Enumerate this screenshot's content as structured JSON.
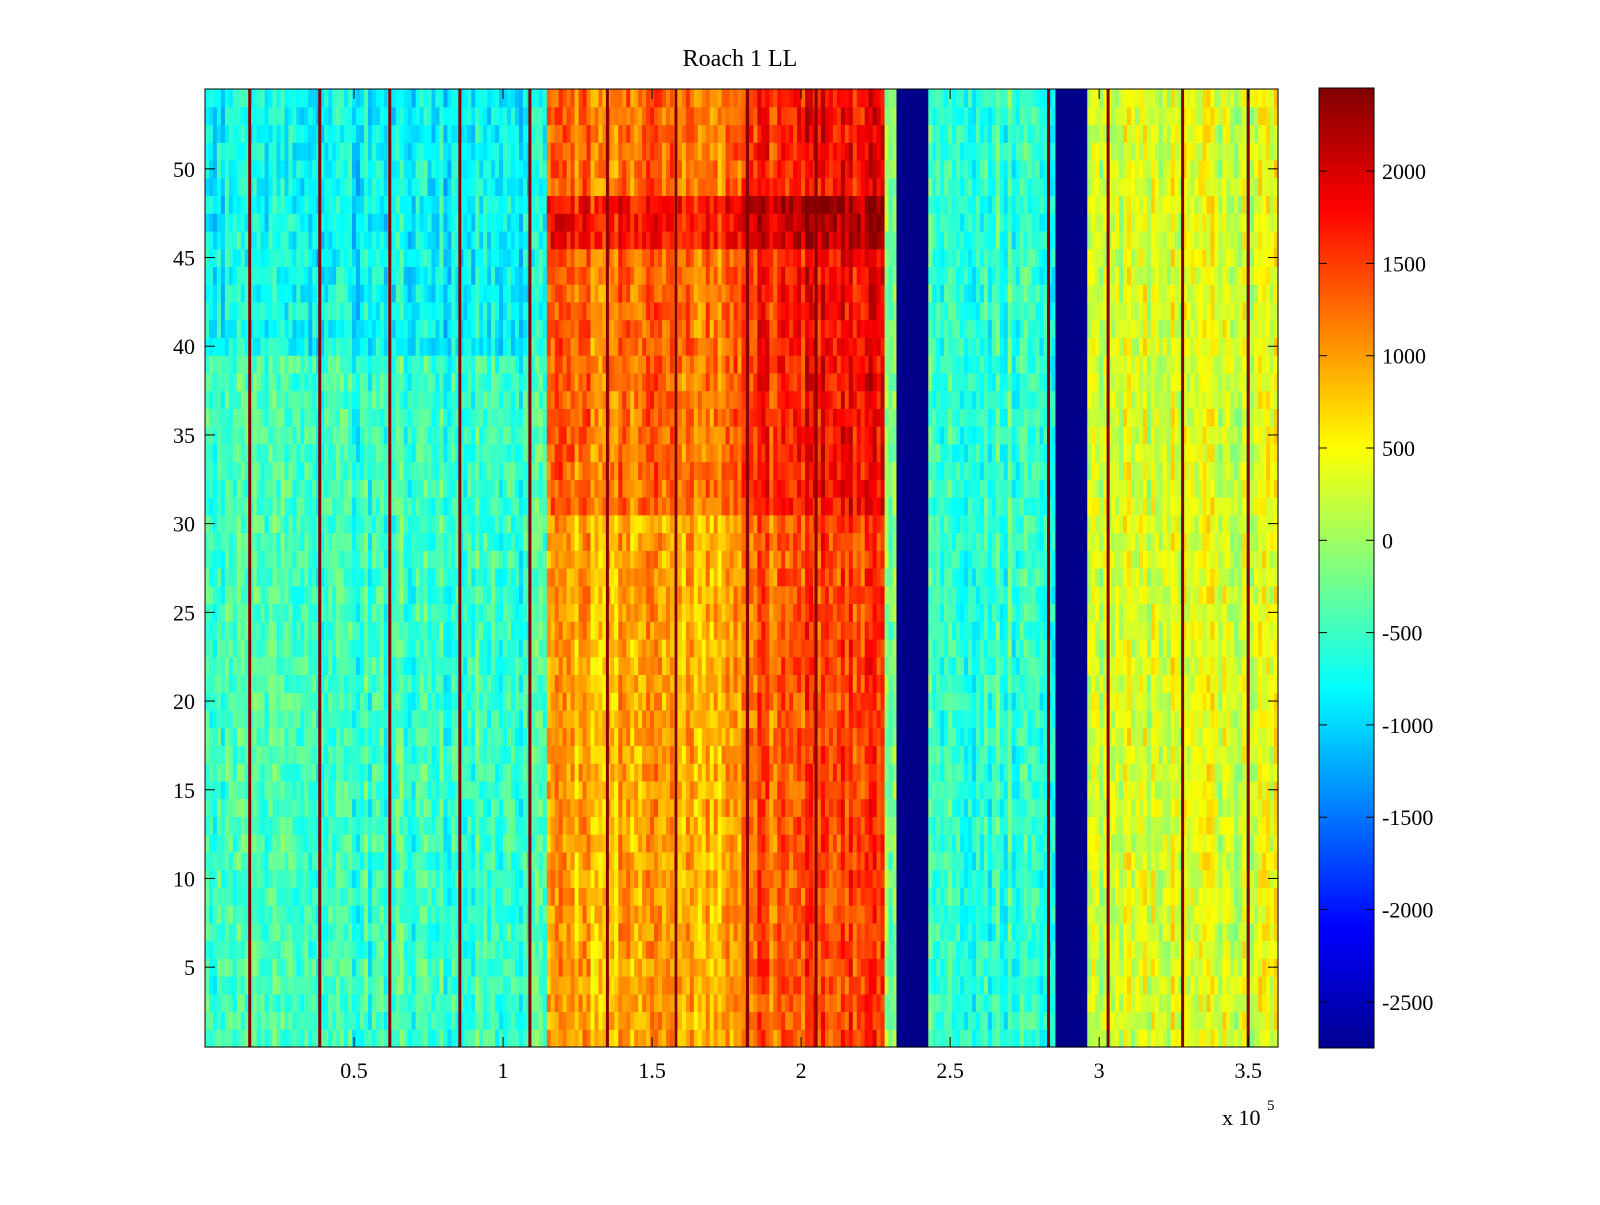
{
  "chart_data": {
    "type": "heatmap",
    "title": "Roach 1 LL",
    "xlabel": "",
    "ylabel": "",
    "colormap": "jet",
    "xlim": [
      0,
      360000
    ],
    "ylim": [
      0.5,
      54.5
    ],
    "x_tick_values": [
      50000,
      100000,
      150000,
      200000,
      250000,
      300000,
      350000
    ],
    "x_tick_labels": [
      "0.5",
      "1",
      "1.5",
      "2",
      "2.5",
      "3",
      "3.5"
    ],
    "x_multiplier_label": {
      "base": "x 10",
      "exponent": "5"
    },
    "y_tick_values": [
      5,
      10,
      15,
      20,
      25,
      30,
      35,
      40,
      45,
      50
    ],
    "y_tick_labels": [
      "5",
      "10",
      "15",
      "20",
      "25",
      "30",
      "35",
      "40",
      "45",
      "50"
    ],
    "clim": [
      -2750,
      2450
    ],
    "colorbar_tick_values": [
      2000,
      1500,
      1000,
      500,
      0,
      -500,
      -1000,
      -1500,
      -2000,
      -2500
    ],
    "colorbar_tick_labels": [
      "2000",
      "1500",
      "1000",
      "500",
      "0",
      "-500",
      "-1000",
      "-1500",
      "-2000",
      "-2500"
    ],
    "rows": 54,
    "column_regions": [
      {
        "x_start": 0,
        "x_end": 115000,
        "base_value": -500
      },
      {
        "x_start": 115000,
        "x_end": 180000,
        "base_value": 900
      },
      {
        "x_start": 180000,
        "x_end": 202000,
        "base_value": 1300
      },
      {
        "x_start": 202000,
        "x_end": 228000,
        "base_value": 1500
      },
      {
        "x_start": 228000,
        "x_end": 232000,
        "base_value": -200
      },
      {
        "x_start": 232000,
        "x_end": 243000,
        "base_value": -2700
      },
      {
        "x_start": 243000,
        "x_end": 285000,
        "base_value": -500
      },
      {
        "x_start": 285000,
        "x_end": 296000,
        "base_value": -2700
      },
      {
        "x_start": 296000,
        "x_end": 360000,
        "base_value": 300
      }
    ],
    "row_modifiers": [
      {
        "y_start": 31,
        "y_end": 54,
        "delta": 300,
        "x_range": [
          115000,
          228000
        ]
      },
      {
        "y_start": 46,
        "y_end": 48,
        "delta": 500,
        "x_range": [
          115000,
          228000
        ]
      },
      {
        "y_start": 40,
        "y_end": 54,
        "delta": -300,
        "x_range": [
          0,
          115000
        ]
      }
    ],
    "spike_lines_x": [
      15000,
      38500,
      62000,
      85500,
      109000,
      135000,
      158000,
      182000,
      205000,
      283000,
      303000,
      328000,
      350000
    ],
    "spike_value": 2400
  }
}
